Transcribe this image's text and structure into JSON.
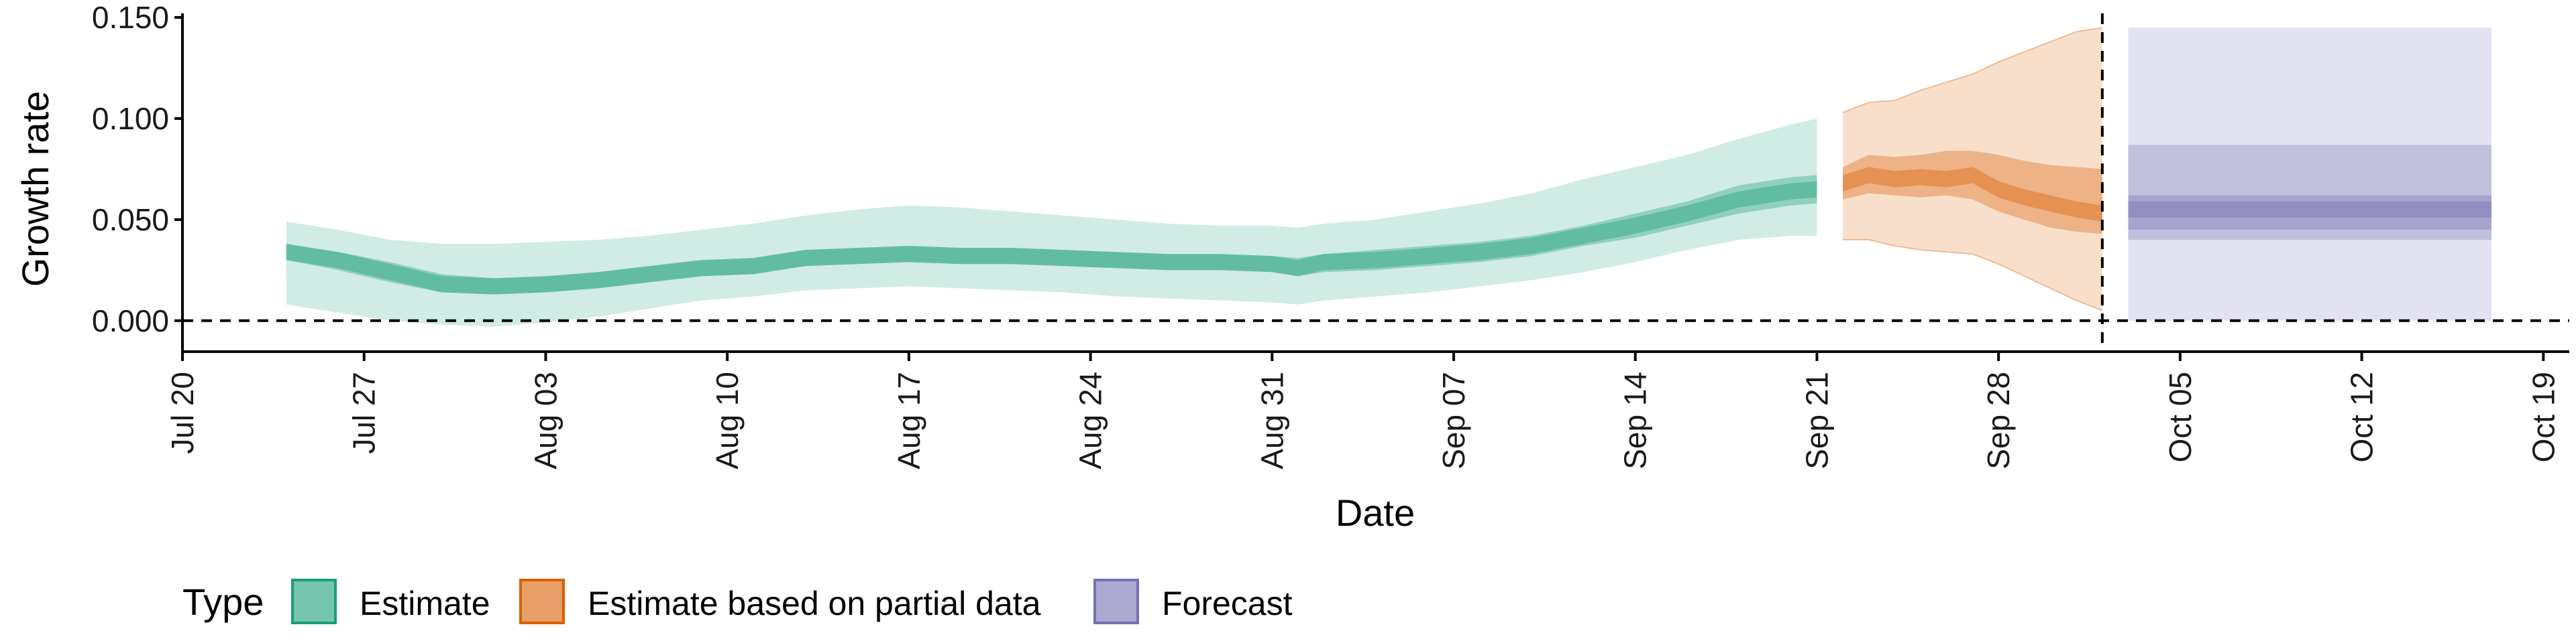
{
  "chart_data": {
    "type": "area",
    "xlabel": "Date",
    "ylabel": "Growth rate",
    "x_ticks": [
      "Jul 20",
      "Jul 27",
      "Aug 03",
      "Aug 10",
      "Aug 17",
      "Aug 24",
      "Aug 31",
      "Sep 07",
      "Sep 14",
      "Sep 21",
      "Sep 28",
      "Oct 05",
      "Oct 12",
      "Oct 19"
    ],
    "y_ticks": [
      "0.000",
      "0.050",
      "0.100",
      "0.150"
    ],
    "ylim": [
      -0.012,
      0.152
    ],
    "xlim": [
      "2020-07-20",
      "2020-10-20"
    ],
    "grid": false,
    "reference_lines": [
      {
        "axis": "y",
        "value": 0,
        "style": "dashed"
      },
      {
        "axis": "x",
        "value": "2020-10-02",
        "style": "dashed"
      }
    ],
    "legend": {
      "title": "Type",
      "position": "bottom",
      "entries": [
        {
          "label": "Estimate",
          "color": "#1b9e77"
        },
        {
          "label": "Estimate based on partial data",
          "color": "#d95f02"
        },
        {
          "label": "Forecast",
          "color": "#7570b3"
        }
      ]
    },
    "series": [
      {
        "name": "Estimate",
        "color": "#1b9e77",
        "x": [
          "2020-07-24",
          "2020-07-26",
          "2020-07-28",
          "2020-07-30",
          "2020-08-01",
          "2020-08-03",
          "2020-08-05",
          "2020-08-07",
          "2020-08-09",
          "2020-08-11",
          "2020-08-13",
          "2020-08-15",
          "2020-08-17",
          "2020-08-19",
          "2020-08-21",
          "2020-08-23",
          "2020-08-25",
          "2020-08-27",
          "2020-08-29",
          "2020-08-31",
          "2020-09-01",
          "2020-09-02",
          "2020-09-04",
          "2020-09-06",
          "2020-09-08",
          "2020-09-10",
          "2020-09-12",
          "2020-09-14",
          "2020-09-16",
          "2020-09-18",
          "2020-09-20",
          "2020-09-21"
        ],
        "median": [
          0.034,
          0.03,
          0.024,
          0.018,
          0.017,
          0.018,
          0.02,
          0.023,
          0.026,
          0.027,
          0.031,
          0.032,
          0.033,
          0.032,
          0.032,
          0.031,
          0.03,
          0.029,
          0.029,
          0.028,
          0.026,
          0.029,
          0.03,
          0.032,
          0.034,
          0.037,
          0.042,
          0.047,
          0.053,
          0.06,
          0.064,
          0.065
        ],
        "lower_50": [
          0.03,
          0.025,
          0.019,
          0.014,
          0.013,
          0.014,
          0.016,
          0.019,
          0.022,
          0.023,
          0.027,
          0.028,
          0.029,
          0.028,
          0.028,
          0.027,
          0.026,
          0.025,
          0.025,
          0.024,
          0.022,
          0.024,
          0.025,
          0.027,
          0.029,
          0.032,
          0.037,
          0.041,
          0.047,
          0.053,
          0.057,
          0.058
        ],
        "upper_50": [
          0.038,
          0.034,
          0.029,
          0.023,
          0.021,
          0.022,
          0.024,
          0.027,
          0.03,
          0.031,
          0.035,
          0.036,
          0.037,
          0.036,
          0.036,
          0.035,
          0.034,
          0.033,
          0.033,
          0.032,
          0.031,
          0.033,
          0.035,
          0.037,
          0.039,
          0.042,
          0.047,
          0.053,
          0.059,
          0.067,
          0.071,
          0.072
        ],
        "lower_90": [
          0.008,
          0.004,
          0.0,
          -0.002,
          -0.003,
          -0.001,
          0.002,
          0.006,
          0.01,
          0.012,
          0.015,
          0.016,
          0.017,
          0.016,
          0.015,
          0.014,
          0.012,
          0.011,
          0.01,
          0.009,
          0.008,
          0.01,
          0.012,
          0.014,
          0.017,
          0.02,
          0.024,
          0.029,
          0.035,
          0.04,
          0.042,
          0.042
        ],
        "upper_90": [
          0.049,
          0.045,
          0.04,
          0.038,
          0.038,
          0.039,
          0.04,
          0.042,
          0.045,
          0.048,
          0.052,
          0.055,
          0.057,
          0.056,
          0.054,
          0.052,
          0.05,
          0.048,
          0.047,
          0.047,
          0.046,
          0.048,
          0.05,
          0.054,
          0.058,
          0.063,
          0.07,
          0.076,
          0.082,
          0.09,
          0.097,
          0.1
        ]
      },
      {
        "name": "Estimate based on partial data",
        "color": "#d95f02",
        "x": [
          "2020-09-22",
          "2020-09-23",
          "2020-09-24",
          "2020-09-25",
          "2020-09-26",
          "2020-09-27",
          "2020-09-28",
          "2020-09-29",
          "2020-09-30",
          "2020-10-01",
          "2020-10-02"
        ],
        "median": [
          0.068,
          0.072,
          0.07,
          0.071,
          0.07,
          0.072,
          0.065,
          0.061,
          0.058,
          0.055,
          0.053
        ],
        "lower_50": [
          0.06,
          0.063,
          0.062,
          0.061,
          0.062,
          0.06,
          0.054,
          0.05,
          0.046,
          0.044,
          0.043
        ],
        "upper_50": [
          0.076,
          0.082,
          0.081,
          0.082,
          0.084,
          0.084,
          0.082,
          0.079,
          0.077,
          0.076,
          0.075
        ],
        "lower_90": [
          0.04,
          0.04,
          0.037,
          0.035,
          0.034,
          0.033,
          0.028,
          0.022,
          0.016,
          0.01,
          0.005
        ],
        "upper_90": [
          0.103,
          0.108,
          0.109,
          0.114,
          0.118,
          0.122,
          0.128,
          0.133,
          0.138,
          0.143,
          0.145
        ]
      },
      {
        "name": "Forecast",
        "color": "#7570b3",
        "x": [
          "2020-10-03",
          "2020-10-17"
        ],
        "median": [
          0.055,
          0.055
        ],
        "lower_50": [
          0.045,
          0.045
        ],
        "upper_50": [
          0.062,
          0.062
        ],
        "lower_90": [
          0.04,
          0.04
        ],
        "upper_90": [
          0.087,
          0.087
        ],
        "lower_outer": [
          0.0,
          0.0
        ],
        "upper_outer": [
          0.145,
          0.145
        ]
      }
    ]
  }
}
